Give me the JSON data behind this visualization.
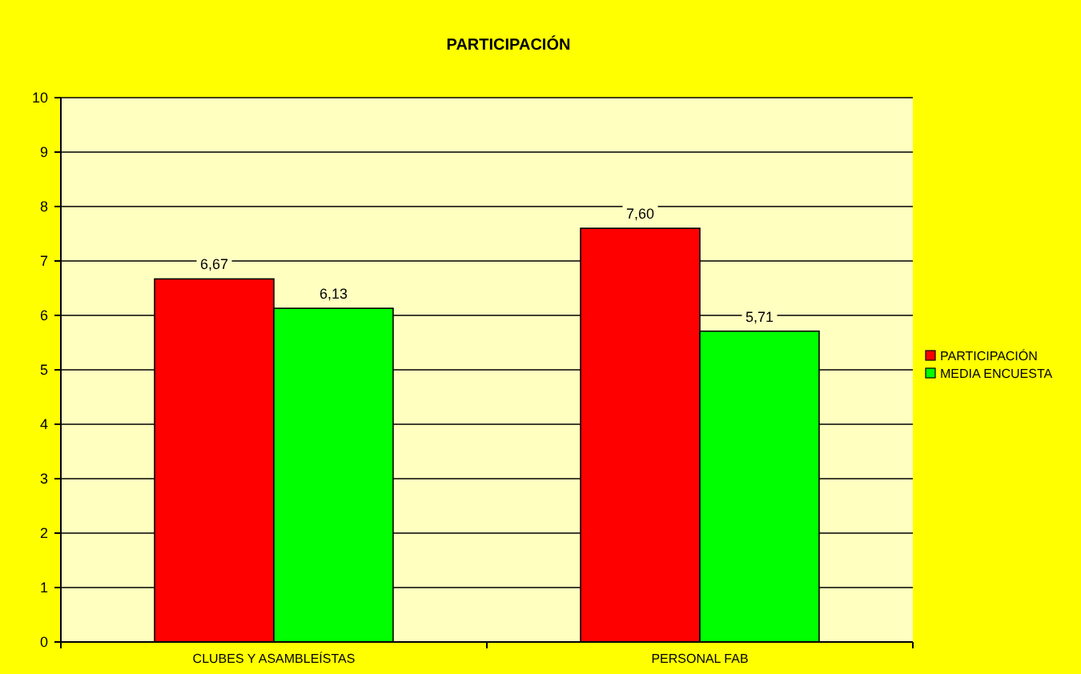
{
  "chart_data": {
    "type": "bar",
    "title": "PARTICIPACIÓN",
    "categories": [
      "CLUBES Y ASAMBLEÍSTAS",
      "PERSONAL FAB"
    ],
    "series": [
      {
        "name": "PARTICIPACIÓN",
        "color": "#ff0000",
        "values": [
          6.67,
          7.6
        ],
        "value_labels": [
          "6,67",
          "7,60"
        ]
      },
      {
        "name": "MEDIA ENCUESTA",
        "color": "#00ff00",
        "values": [
          6.13,
          5.71
        ],
        "value_labels": [
          "6,13",
          "5,71"
        ]
      }
    ],
    "ylim": [
      0,
      10
    ],
    "yticks": [
      0,
      1,
      2,
      3,
      4,
      5,
      6,
      7,
      8,
      9,
      10
    ],
    "grid": "y",
    "legend": "right"
  }
}
